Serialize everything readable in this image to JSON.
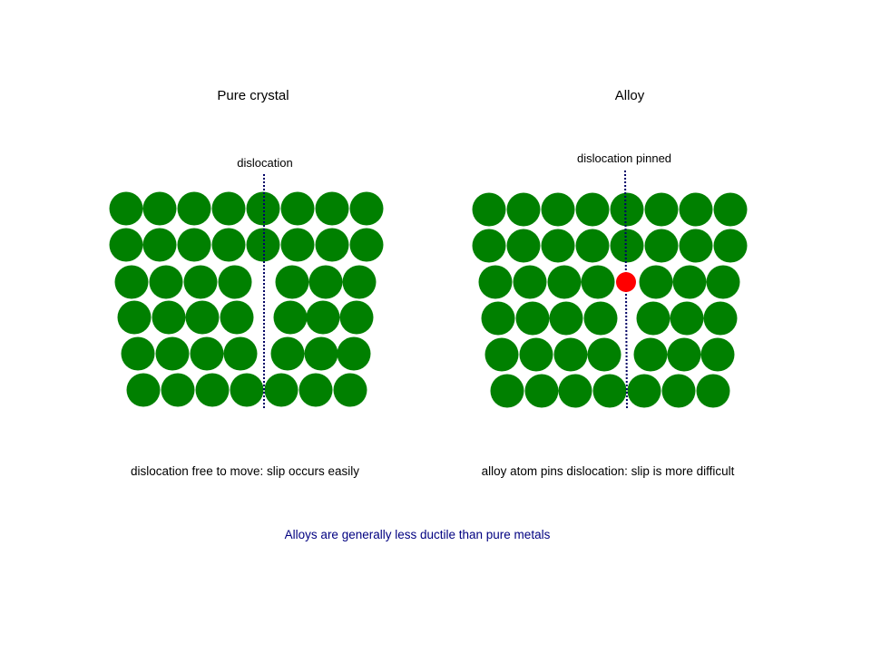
{
  "panels": {
    "left": {
      "title": "Pure crystal",
      "dislocation_label": "dislocation",
      "caption": "dislocation free to move: slip occurs easily"
    },
    "right": {
      "title": "Alloy",
      "dislocation_label": "dislocation pinned",
      "caption": "alloy atom pins dislocation: slip is more difficult"
    }
  },
  "conclusion": "Alloys are generally less ductile than pure metals",
  "colors": {
    "atom": "#008000",
    "alloy_atom": "#ff0000",
    "dislocation_line": "#000066",
    "conclusion_text": "#000080"
  }
}
